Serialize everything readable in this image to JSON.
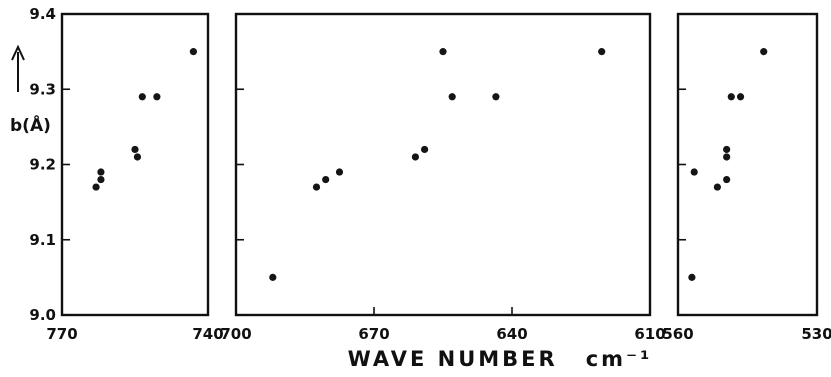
{
  "chart_data": {
    "type": "scatter",
    "ylabel": "b(Å)",
    "xlabel": "WAVE NUMBER",
    "xunit": "cm⁻¹",
    "ylim": [
      9.0,
      9.4
    ],
    "yticks": [
      9.0,
      9.1,
      9.2,
      9.3,
      9.4
    ],
    "yticklabels": [
      "9.0",
      "9.1",
      "9.2",
      "9.3",
      "9.4"
    ],
    "grid": false,
    "panels": [
      {
        "xlim": [
          770,
          740
        ],
        "xticks": [
          770,
          740
        ],
        "points": [
          {
            "x": 763,
            "y": 9.17
          },
          {
            "x": 762,
            "y": 9.18
          },
          {
            "x": 762,
            "y": 9.19
          },
          {
            "x": 755,
            "y": 9.22
          },
          {
            "x": 754.5,
            "y": 9.21
          },
          {
            "x": 753.5,
            "y": 9.29
          },
          {
            "x": 750.5,
            "y": 9.29
          },
          {
            "x": 743,
            "y": 9.35
          }
        ]
      },
      {
        "xlim": [
          700,
          610
        ],
        "xticks": [
          700,
          670,
          640,
          610
        ],
        "points": [
          {
            "x": 692,
            "y": 9.05
          },
          {
            "x": 682.5,
            "y": 9.17
          },
          {
            "x": 680.5,
            "y": 9.18
          },
          {
            "x": 677.5,
            "y": 9.19
          },
          {
            "x": 661,
            "y": 9.21
          },
          {
            "x": 659,
            "y": 9.22
          },
          {
            "x": 655,
            "y": 9.35
          },
          {
            "x": 653,
            "y": 9.29
          },
          {
            "x": 643.5,
            "y": 9.29
          },
          {
            "x": 620.5,
            "y": 9.35
          }
        ]
      },
      {
        "xlim": [
          560,
          530
        ],
        "xticks": [
          560,
          530
        ],
        "points": [
          {
            "x": 557,
            "y": 9.05
          },
          {
            "x": 556.5,
            "y": 9.19
          },
          {
            "x": 551.5,
            "y": 9.17
          },
          {
            "x": 549.5,
            "y": 9.18
          },
          {
            "x": 549.5,
            "y": 9.21
          },
          {
            "x": 549.5,
            "y": 9.22
          },
          {
            "x": 548.5,
            "y": 9.29
          },
          {
            "x": 546.5,
            "y": 9.29
          },
          {
            "x": 541.5,
            "y": 9.35
          }
        ]
      }
    ]
  }
}
